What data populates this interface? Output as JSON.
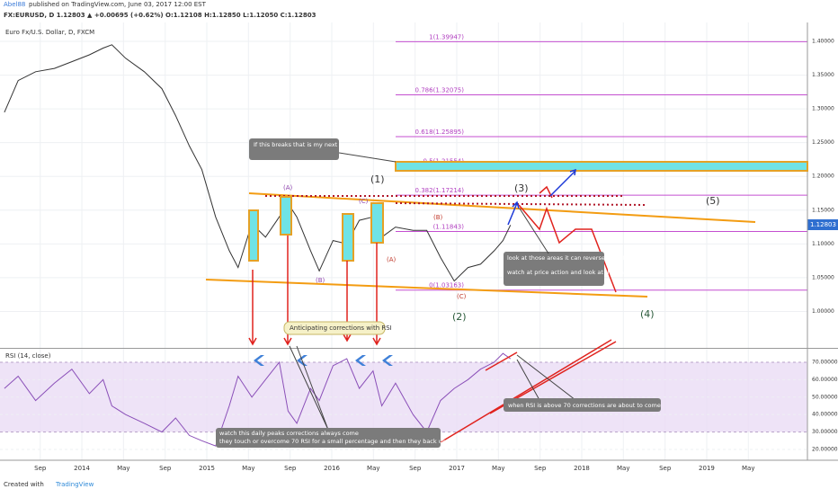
{
  "header": {
    "author": "Abel88",
    "published": "published on TradingView.com, June 03, 2017 12:00 EST",
    "quote": "FX:EURUSD, D 1.12803 ▲ +0.00695 (+0.62%) O:1.12108 H:1.12850 L:1.12050 C:1.12803",
    "last_price": "1.12803"
  },
  "chart_data": [
    {
      "type": "line",
      "title": "Euro Fx/U.S. Dollar, D, FXCM",
      "color": "#333333",
      "x": [
        2013.38,
        2013.49,
        2013.63,
        2013.78,
        2013.92,
        2014.06,
        2014.17,
        2014.24,
        2014.35,
        2014.5,
        2014.64,
        2014.75,
        2014.86,
        2014.96,
        2015.07,
        2015.18,
        2015.25,
        2015.36,
        2015.47,
        2015.58,
        2015.65,
        2015.72,
        2015.83,
        2015.9,
        2016.01,
        2016.12,
        2016.22,
        2016.33,
        2016.4,
        2016.51,
        2016.65,
        2016.76,
        2016.87,
        2016.98,
        2017.09,
        2017.19,
        2017.3,
        2017.37,
        2017.43
      ],
      "values": [
        1.295,
        1.342,
        1.355,
        1.36,
        1.37,
        1.38,
        1.39,
        1.395,
        1.375,
        1.355,
        1.33,
        1.29,
        1.245,
        1.21,
        1.14,
        1.09,
        1.065,
        1.13,
        1.11,
        1.14,
        1.16,
        1.14,
        1.09,
        1.06,
        1.105,
        1.1,
        1.135,
        1.14,
        1.11,
        1.125,
        1.12,
        1.12,
        1.08,
        1.045,
        1.065,
        1.07,
        1.09,
        1.105,
        1.128
      ],
      "xlim": [
        2013.345,
        2019.806
      ],
      "ylim": [
        0.946,
        1.428
      ],
      "yticks": [
        {
          "value": 1.4,
          "label": "1.40000"
        },
        {
          "value": 1.35,
          "label": "1.35000"
        },
        {
          "value": 1.3,
          "label": "1.30000"
        },
        {
          "value": 1.25,
          "label": "1.25000"
        },
        {
          "value": 1.2,
          "label": "1.20000"
        },
        {
          "value": 1.15,
          "label": "1.15000"
        },
        {
          "value": 1.1,
          "label": "1.10000"
        },
        {
          "value": 1.05,
          "label": "1.05000"
        },
        {
          "value": 1,
          "label": "1.00000"
        }
      ],
      "fib_levels": [
        {
          "value": 1.39947,
          "label": "1(1.39947)"
        },
        {
          "value": 1.32075,
          "label": "0.786(1.32075)"
        },
        {
          "value": 1.25895,
          "label": "0.618(1.25895)"
        },
        {
          "value": 1.21554,
          "label": "0.5(1.21554)"
        },
        {
          "value": 1.17214,
          "label": "0.382(1.17214)"
        },
        {
          "value": 1.11843,
          "label": "(1.11843)"
        },
        {
          "value": 1.03163,
          "label": "0(1.03163)"
        }
      ],
      "annotations": [
        "If this breaks that is my next target",
        "look at those areas it can reverse back to the bottom.",
        "watch at price action and look at the pattern",
        "(1)",
        "(2)",
        "(3)",
        "(4)",
        "(5)",
        "(A)",
        "(B)",
        "(C)"
      ]
    },
    {
      "type": "line",
      "title": "RSI (14, close)",
      "color": "#8a4fb8",
      "x": [
        2013.38,
        2013.49,
        2013.63,
        2013.78,
        2013.92,
        2014.06,
        2014.17,
        2014.24,
        2014.35,
        2014.5,
        2014.64,
        2014.75,
        2014.86,
        2014.96,
        2015.07,
        2015.18,
        2015.25,
        2015.36,
        2015.47,
        2015.58,
        2015.65,
        2015.72,
        2015.83,
        2015.9,
        2016.01,
        2016.12,
        2016.22,
        2016.33,
        2016.4,
        2016.51,
        2016.65,
        2016.76,
        2016.87,
        2016.98,
        2017.09,
        2017.19,
        2017.3,
        2017.37,
        2017.43
      ],
      "values": [
        55,
        62,
        48,
        58,
        66,
        52,
        60,
        45,
        40,
        35,
        30,
        38,
        28,
        25,
        22,
        45,
        62,
        50,
        60,
        70,
        42,
        35,
        55,
        48,
        68,
        72,
        55,
        65,
        45,
        58,
        40,
        30,
        48,
        55,
        60,
        66,
        70,
        75,
        72
      ],
      "xlim": [
        2013.345,
        2019.806
      ],
      "ylim": [
        13.8,
        77.7
      ],
      "band": [
        30,
        70
      ],
      "yticks": [
        {
          "value": 70,
          "label": "70.00000"
        },
        {
          "value": 60,
          "label": "60.00000"
        },
        {
          "value": 50,
          "label": "50.00000"
        },
        {
          "value": 40,
          "label": "40.00000"
        },
        {
          "value": 30,
          "label": "30.00000"
        },
        {
          "value": 20,
          "label": "20.00000"
        }
      ],
      "xticks": [
        {
          "value": 2013.667,
          "label": "Sep"
        },
        {
          "value": 2014,
          "label": "2014"
        },
        {
          "value": 2014.333,
          "label": "May"
        },
        {
          "value": 2014.667,
          "label": "Sep"
        },
        {
          "value": 2015,
          "label": "2015"
        },
        {
          "value": 2015.333,
          "label": "May"
        },
        {
          "value": 2015.667,
          "label": "Sep"
        },
        {
          "value": 2016,
          "label": "2016"
        },
        {
          "value": 2016.333,
          "label": "May"
        },
        {
          "value": 2016.667,
          "label": "Sep"
        },
        {
          "value": 2017,
          "label": "2017"
        },
        {
          "value": 2017.333,
          "label": "May"
        },
        {
          "value": 2017.667,
          "label": "Sep"
        },
        {
          "value": 2018,
          "label": "2018"
        },
        {
          "value": 2018.333,
          "label": "May"
        },
        {
          "value": 2018.667,
          "label": "Sep"
        },
        {
          "value": 2019,
          "label": "2019"
        },
        {
          "value": 2019.333,
          "label": "May"
        }
      ],
      "annotations": [
        "Anticipating corrections with RSI",
        "watch this daily peaks corrections always come",
        "they touch or overcome 70 RSI for a small percentage and then they back up.",
        "when RSI is above  70 corrections are about to come"
      ]
    }
  ],
  "footer": {
    "created": "Created with",
    "brand": "TradingView"
  }
}
